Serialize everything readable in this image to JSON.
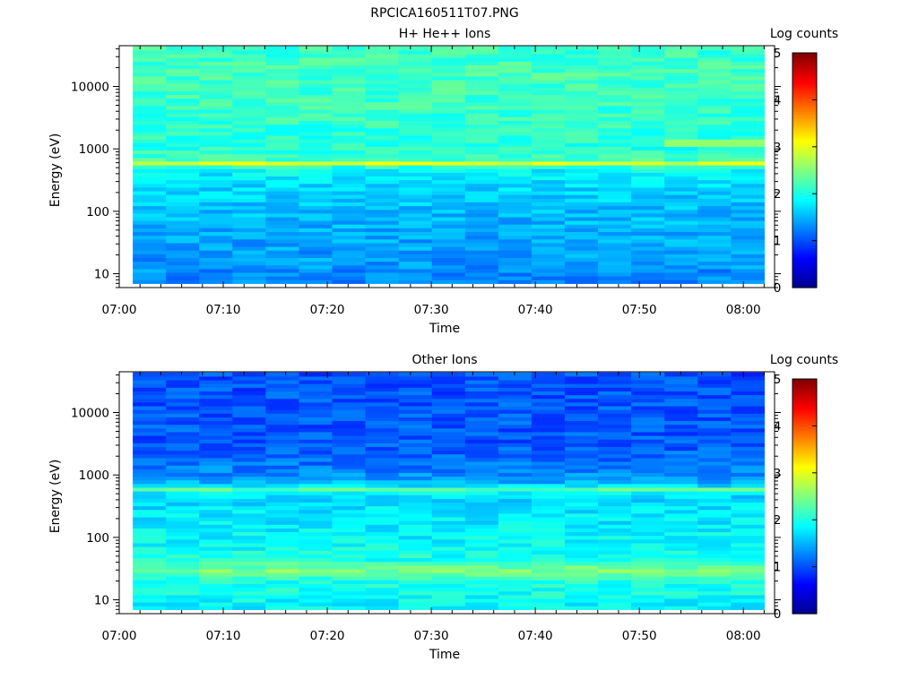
{
  "figure": {
    "title": "RPCICA160511T07.PNG"
  },
  "colormap": [
    "#00008f",
    "#0000ff",
    "#0080ff",
    "#00ffff",
    "#80ff80",
    "#ffff00",
    "#ff8000",
    "#ff0000",
    "#800000"
  ],
  "chart_data": [
    {
      "type": "heatmap",
      "title": "H+ He++ Ions",
      "xlabel": "Time",
      "ylabel": "Energy (eV)",
      "x_ticks": [
        "07:00",
        "07:10",
        "07:20",
        "07:30",
        "07:40",
        "07:50",
        "08:00"
      ],
      "y_ticks": [
        "10",
        "100",
        "1000",
        "10000"
      ],
      "x_range": [
        "07:00",
        "08:03"
      ],
      "data_end": "08:02",
      "y_range_eV": [
        6,
        45000
      ],
      "y_scale": "log",
      "colorbar": {
        "label": "Log counts",
        "range": [
          0,
          5
        ],
        "ticks": [
          "0",
          "1",
          "2",
          "3",
          "4",
          "5"
        ]
      },
      "time_bins": 19,
      "energy_profile_log_counts": [
        {
          "energy_eV": 8,
          "log_counts": 1.25
        },
        {
          "energy_eV": 12,
          "log_counts": 1.35
        },
        {
          "energy_eV": 20,
          "log_counts": 1.4
        },
        {
          "energy_eV": 40,
          "log_counts": 1.45
        },
        {
          "energy_eV": 100,
          "log_counts": 1.55
        },
        {
          "energy_eV": 200,
          "log_counts": 1.65
        },
        {
          "energy_eV": 450,
          "log_counts": 1.85
        },
        {
          "energy_eV": 520,
          "log_counts": 2.05
        },
        {
          "energy_eV": 600,
          "log_counts": 3.0
        },
        {
          "energy_eV": 680,
          "log_counts": 2.2
        },
        {
          "energy_eV": 1000,
          "log_counts": 2.05
        },
        {
          "energy_eV": 2000,
          "log_counts": 2.1
        },
        {
          "energy_eV": 5000,
          "log_counts": 2.15
        },
        {
          "energy_eV": 15000,
          "log_counts": 2.2
        },
        {
          "energy_eV": 40000,
          "log_counts": 2.15
        }
      ],
      "features": [
        {
          "description": "secondary band",
          "energy_eV": 1250,
          "from": "07:53",
          "to": "08:02",
          "log_counts": 2.6
        }
      ]
    },
    {
      "type": "heatmap",
      "title": "Other Ions",
      "xlabel": "Time",
      "ylabel": "Energy (eV)",
      "x_ticks": [
        "07:00",
        "07:10",
        "07:20",
        "07:30",
        "07:40",
        "07:50",
        "08:00"
      ],
      "y_ticks": [
        "10",
        "100",
        "1000",
        "10000"
      ],
      "x_range": [
        "07:00",
        "08:03"
      ],
      "data_end": "08:02",
      "y_range_eV": [
        6,
        45000
      ],
      "y_scale": "log",
      "colorbar": {
        "label": "Log counts",
        "range": [
          0,
          5
        ],
        "ticks": [
          "0",
          "1",
          "2",
          "3",
          "4",
          "5"
        ]
      },
      "time_bins": 19,
      "energy_profile_log_counts": [
        {
          "energy_eV": 8,
          "log_counts": 1.85
        },
        {
          "energy_eV": 14,
          "log_counts": 1.95
        },
        {
          "energy_eV": 20,
          "log_counts": 2.0
        },
        {
          "energy_eV": 30,
          "log_counts": 2.5
        },
        {
          "energy_eV": 45,
          "log_counts": 2.0
        },
        {
          "energy_eV": 100,
          "log_counts": 1.85
        },
        {
          "energy_eV": 300,
          "log_counts": 1.75
        },
        {
          "energy_eV": 500,
          "log_counts": 1.7
        },
        {
          "energy_eV": 600,
          "log_counts": 2.35
        },
        {
          "energy_eV": 700,
          "log_counts": 1.6
        },
        {
          "energy_eV": 1000,
          "log_counts": 1.3
        },
        {
          "energy_eV": 3000,
          "log_counts": 1.05
        },
        {
          "energy_eV": 10000,
          "log_counts": 1.05
        },
        {
          "energy_eV": 40000,
          "log_counts": 1.0
        }
      ]
    }
  ]
}
